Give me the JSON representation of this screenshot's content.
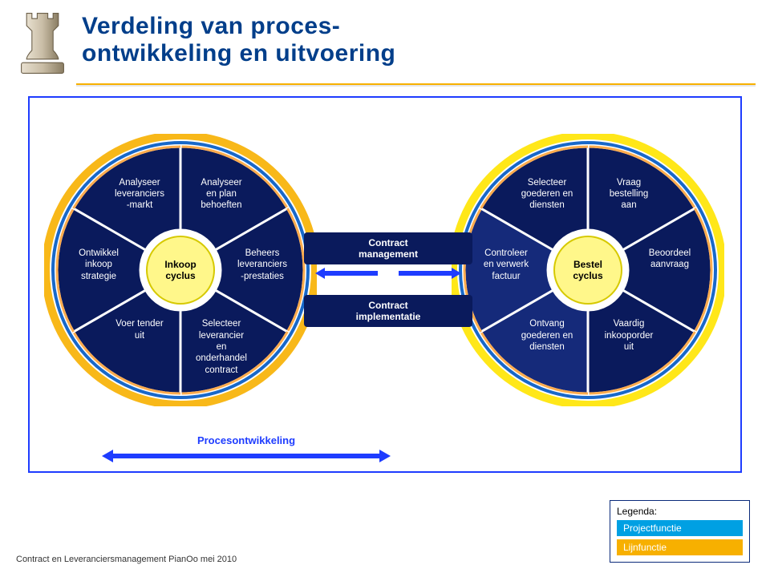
{
  "title": "Verdeling van proces-\nontwikkeling en uitvoering",
  "colors": {
    "title": "#003e8a",
    "accent_orange": "#f7b000",
    "frame_blue": "#1e3cff",
    "wedge_fill": "#0a1a5c",
    "wedge_alt": "#152a7a",
    "ring_outer_left": "#f7b000",
    "ring_outer_right": "#ffe400",
    "ring_inner": "#1868c9",
    "hub_fill": "#fff78a",
    "hub_border": "#d6c900",
    "arrow_blue": "#1e3cff",
    "legend_project": "#00a0e3",
    "legend_line": "#f7b000"
  },
  "leftWheel": {
    "hub": "Inkoop\ncyclus",
    "labels": [
      "Analyseer\nen plan\nbehoeften",
      "Beheers\nleveranciers\n-prestaties",
      "Selecteer\nleverancier\nen\nonderhandel\ncontract",
      "Voer tender\nuit",
      "Ontwikkel\ninkoop\nstrategie",
      "Analyseer\nleveranciers\n-markt"
    ],
    "highlight": [
      false,
      false,
      false,
      false,
      false,
      false
    ]
  },
  "rightWheel": {
    "hub": "Bestel\ncyclus",
    "labels": [
      "Vraag\nbestelling\naan",
      "Beoordeel\naanvraag",
      "Vaardig\ninkooporder\nuit",
      "Ontvang\ngoederen en\ndiensten",
      "Controleer\nen verwerk\nfactuur",
      "Selecteer\ngoederen en\ndiensten"
    ],
    "highlight": [
      false,
      false,
      false,
      true,
      true,
      false
    ]
  },
  "bridge": {
    "top": "Contract\nmanagement",
    "bottom": "Contract\nimplementatie"
  },
  "procArrow": "Procesontwikkeling",
  "footer": "Contract en Leveranciersmanagement PianOo mei 2010",
  "legend": {
    "title": "Legenda:",
    "project": "Projectfunctie",
    "line": "Lijnfunctie"
  }
}
